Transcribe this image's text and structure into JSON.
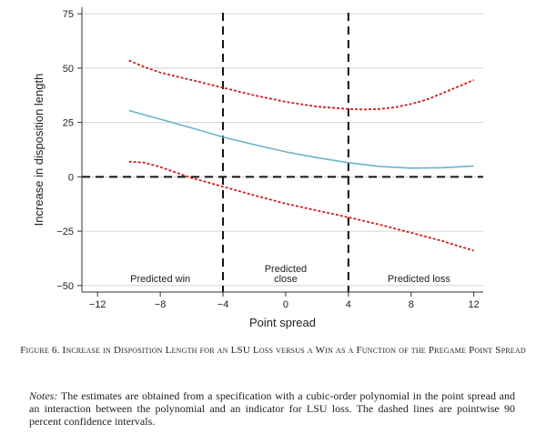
{
  "chart_data": {
    "type": "line",
    "xlabel": "Point spread",
    "ylabel": "Increase in disposition length",
    "xlim": [
      -13,
      12.6
    ],
    "ylim": [
      -53,
      78
    ],
    "xticks": [
      -12,
      -8,
      -4,
      0,
      4,
      8,
      12
    ],
    "xtick_labels": [
      "−12",
      "−8",
      "−4",
      "0",
      "4",
      "8",
      "12"
    ],
    "yticks": [
      -50,
      -25,
      0,
      25,
      50,
      75
    ],
    "ytick_labels": [
      "−50",
      "−25",
      "0",
      "25",
      "50",
      "75"
    ],
    "grid": true,
    "vlines": [
      -4,
      4
    ],
    "hline": 0,
    "regions": [
      {
        "label": [
          "Predicted win"
        ],
        "x": -8
      },
      {
        "label": [
          "Predicted",
          "close"
        ],
        "x": 0
      },
      {
        "label": [
          "Predicted loss"
        ],
        "x": 8.5
      }
    ],
    "series": [
      {
        "name": "Estimate",
        "style": "solid",
        "color": "#6bb3c9",
        "x": [
          -10,
          -8,
          -6,
          -4,
          -2,
          0,
          2,
          4,
          6,
          8,
          10,
          12
        ],
        "y": [
          30.5,
          26.5,
          22.5,
          18.3,
          14.8,
          11.5,
          8.8,
          6.5,
          4.8,
          4.0,
          4.2,
          5.0
        ]
      },
      {
        "name": "Upper 90% CI",
        "style": "dashed",
        "color": "#cc1f1f",
        "x": [
          -10,
          -9,
          -8,
          -6,
          -4,
          -2,
          0,
          2,
          4,
          5,
          6,
          7,
          8,
          9,
          10,
          11,
          12
        ],
        "y": [
          53.5,
          50.5,
          48,
          44.5,
          41,
          37.5,
          34.5,
          32.3,
          31.2,
          31,
          31.2,
          32,
          33.5,
          35.5,
          38.5,
          41.5,
          44.5
        ]
      },
      {
        "name": "Lower 90% CI",
        "style": "dashed",
        "color": "#cc1f1f",
        "x": [
          -10,
          -9,
          -8,
          -6,
          -4,
          -2,
          0,
          2,
          4,
          6,
          8,
          10,
          12
        ],
        "y": [
          7,
          6.5,
          4.5,
          -0.5,
          -4.5,
          -8.5,
          -12.3,
          -15.5,
          -18.6,
          -22,
          -25.7,
          -29.5,
          -34
        ]
      }
    ]
  },
  "caption": "Figure 6. Increase in Disposition Length for an LSU Loss versus a Win as a Function of the Pregame Point Spread",
  "notes": {
    "label": "Notes:",
    "text": " The estimates are obtained from a specification with a cubic-order polynomial in the point spread and an interaction between the polynomial and an indicator for LSU loss. The dashed lines are pointwise 90 percent confidence intervals."
  }
}
